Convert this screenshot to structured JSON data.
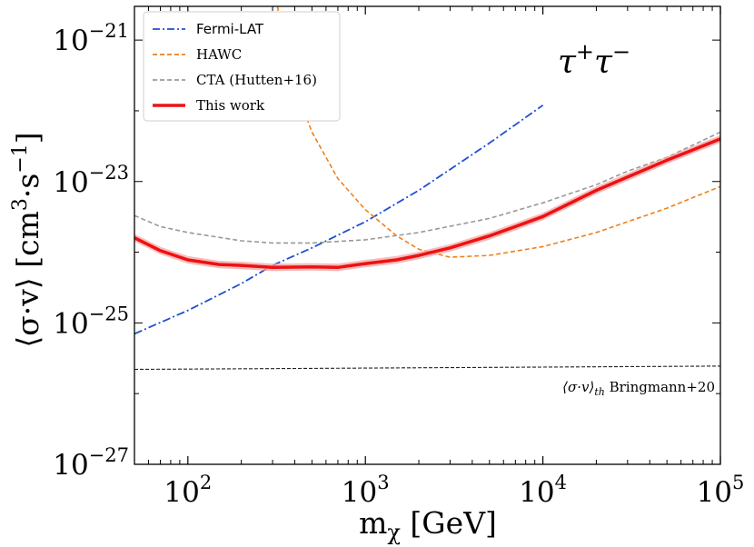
{
  "chart_data": {
    "type": "line",
    "xscale": "log",
    "yscale": "log",
    "xlim": [
      50,
      100000
    ],
    "ylim": [
      1e-27,
      3e-21
    ],
    "xlabel": {
      "base": "m",
      "sub": "χ",
      "unit": " [GeV]"
    },
    "ylabel": {
      "main": "⟨σ·v⟩ [cm",
      "sup1": "3",
      "mid": "·s",
      "sup2": "−1",
      "end": "]"
    },
    "channel": {
      "base": "τ",
      "sup1": "+",
      "base2": "τ",
      "sup2": "−"
    },
    "x_ticks": [
      {
        "value": 100,
        "base": "10",
        "exp": "2"
      },
      {
        "value": 1000,
        "base": "10",
        "exp": "3"
      },
      {
        "value": 10000,
        "base": "10",
        "exp": "4"
      },
      {
        "value": 100000,
        "base": "10",
        "exp": "5"
      }
    ],
    "y_ticks": [
      {
        "value": 1e-21,
        "base": "10",
        "exp": "−21"
      },
      {
        "value": 1e-23,
        "base": "10",
        "exp": "−23"
      },
      {
        "value": 1e-25,
        "base": "10",
        "exp": "−25"
      },
      {
        "value": 1e-27,
        "base": "10",
        "exp": "−27"
      }
    ],
    "thermal_label": {
      "main": "⟨σ·v⟩",
      "sub": "th",
      "rest": " Bringmann+20"
    },
    "series": [
      {
        "name": "Fermi-LAT",
        "color": "#1f4fd1",
        "style": "dashdot",
        "x": [
          50,
          100,
          200,
          300,
          500,
          1000,
          2000,
          5000,
          10000
        ],
        "y": [
          7e-26,
          1.5e-25,
          3.6e-25,
          6.5e-25,
          1.15e-24,
          2.7e-24,
          7.5e-24,
          3.5e-23,
          1.2e-22
        ]
      },
      {
        "name": "HAWC",
        "color": "#f07f1b",
        "style": "dashed",
        "x": [
          320,
          350,
          400,
          500,
          700,
          1000,
          1500,
          2000,
          3000,
          5000,
          10000,
          20000,
          50000,
          100000
        ],
        "y": [
          3e-21,
          8e-22,
          2.2e-22,
          5e-23,
          1.1e-23,
          4e-24,
          1.7e-24,
          1.1e-24,
          8.5e-25,
          9e-25,
          1.2e-24,
          1.9e-24,
          4.2e-24,
          8.5e-24
        ]
      },
      {
        "name": "CTA (Hutten+16)",
        "color": "#999999",
        "style": "dashed",
        "x": [
          50,
          70,
          100,
          200,
          300,
          500,
          1000,
          2000,
          5000,
          10000,
          20000,
          30000,
          50000,
          100000
        ],
        "y": [
          3.3e-24,
          2.3e-24,
          1.9e-24,
          1.45e-24,
          1.35e-24,
          1.35e-24,
          1.5e-24,
          1.9e-24,
          3e-24,
          5e-24,
          9e-24,
          1.4e-23,
          2.2e-23,
          5e-23
        ]
      },
      {
        "name": "This work",
        "color": "#ee1111",
        "style": "solid",
        "band_color": "#f4a6a6",
        "band_factor": 1.13,
        "x": [
          50,
          70,
          100,
          150,
          200,
          300,
          500,
          700,
          1000,
          1500,
          2000,
          3000,
          5000,
          7000,
          10000,
          20000,
          50000,
          100000
        ],
        "y": [
          1.6e-24,
          1.05e-24,
          7.8e-25,
          6.7e-25,
          6.5e-25,
          6.1e-25,
          6.2e-25,
          6.1e-25,
          6.9e-25,
          7.8e-25,
          9e-25,
          1.15e-24,
          1.7e-24,
          2.3e-24,
          3.2e-24,
          7.5e-24,
          2e-23,
          4e-23
        ]
      },
      {
        "name": "⟨σ·v⟩th Bringmann+20",
        "color": "#222222",
        "style": "thin-dashed",
        "x": [
          50,
          100000
        ],
        "y": [
          2.2e-26,
          2.45e-26
        ]
      }
    ],
    "legend": {
      "position": "top-left",
      "entries": [
        "Fermi-LAT",
        "HAWC",
        "CTA (Hutten+16)",
        "This work"
      ]
    }
  }
}
